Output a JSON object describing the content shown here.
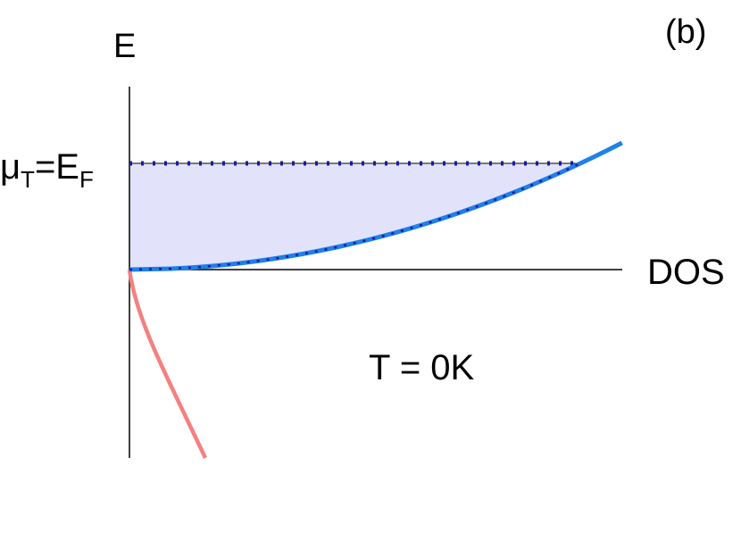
{
  "labels": {
    "energy_axis": "E",
    "panel": "(b)",
    "dos_axis": "DOS",
    "temperature": "T = 0K",
    "fermi_level": {
      "base1": "μ",
      "sub1": "T",
      "base2": "=E",
      "sub2": "F"
    }
  }
}
